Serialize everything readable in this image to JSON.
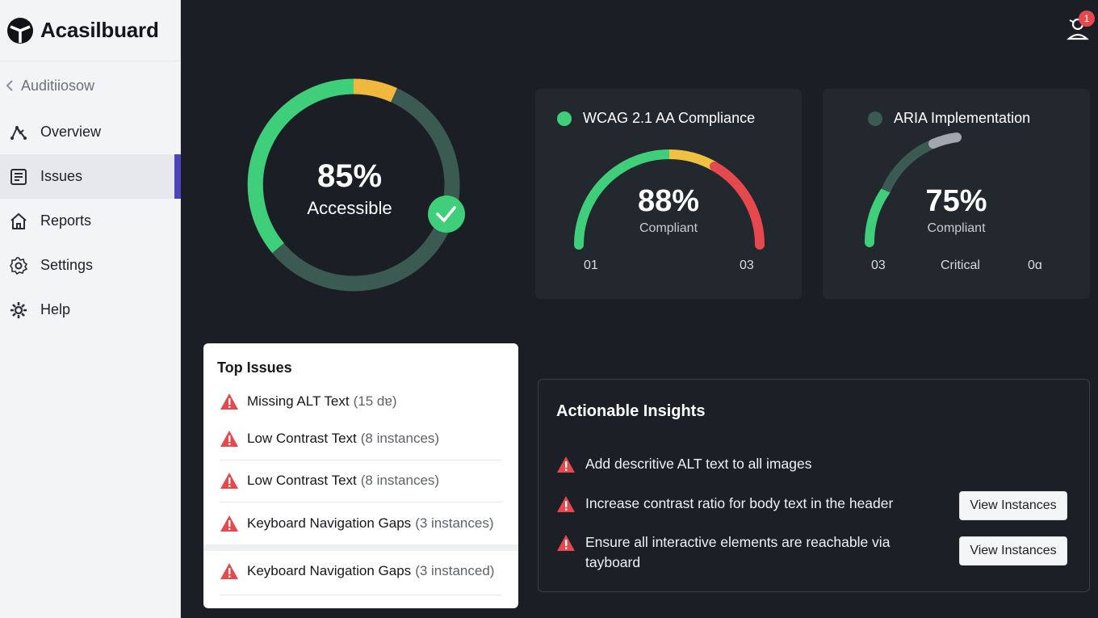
{
  "app": {
    "brand": "Acasilbuard",
    "notification_count": "1"
  },
  "sidebar": {
    "back_label": "Auditiiosow",
    "items": [
      {
        "label": "Overview",
        "icon": "overview-icon",
        "active": false
      },
      {
        "label": "Issues",
        "icon": "issues-icon",
        "active": true
      },
      {
        "label": "Reports",
        "icon": "home-icon",
        "active": false
      },
      {
        "label": "Settings",
        "icon": "gear-icon",
        "active": false
      },
      {
        "label": "Help",
        "icon": "cog-icon",
        "active": false
      }
    ]
  },
  "overall": {
    "percent_text": "85%",
    "label": "Accessible",
    "value": 85,
    "colors": [
      "#3fcf7a",
      "#f0b83c",
      "#3b5a51"
    ]
  },
  "wcag": {
    "title": "WCAG 2.1 AA Compliance",
    "percent_text": "88%",
    "sub": "Compliant",
    "value": 88,
    "tick_left": "01",
    "tick_right": "03",
    "dot_color": "#3fcf7a"
  },
  "aria": {
    "title": "ARIA Implementation",
    "percent_text": "75%",
    "sub": "Compliant",
    "value": 75,
    "tick_left": "03",
    "tick_mid": "Critical",
    "tick_right": "0ɑ",
    "dot_color": "#3b5a51"
  },
  "top_issues": {
    "title": "Top Issues",
    "items": [
      {
        "name": "Missing ALT Text",
        "count": "(15 dɐ)"
      },
      {
        "name": "Low Contrast Text",
        "count": "(8 instances)"
      },
      {
        "name": "Low Contrast Text",
        "count": "(8 instances)"
      },
      {
        "name": "Keyboard Navigation Gaps",
        "count": "(3 instances)"
      },
      {
        "name": "Keyboard Navigation Gaps",
        "count": "(3 instanced)"
      }
    ]
  },
  "insights": {
    "title": "Actionable Insights",
    "items": [
      {
        "text": "Add descritive ALT text to all images"
      },
      {
        "text": "Increase contrast ratio for body text in the header",
        "button": "View Instances"
      },
      {
        "text": "Ensure all interactive elements are reachable via tayboard",
        "button": "View Instances"
      }
    ]
  }
}
